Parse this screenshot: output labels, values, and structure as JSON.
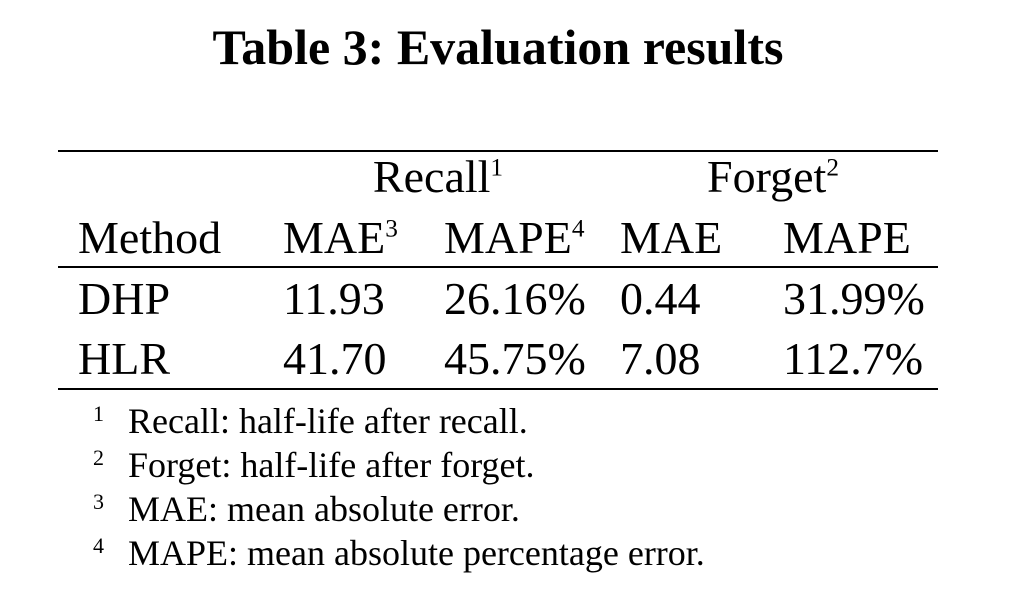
{
  "caption": "Table 3: Evaluation results",
  "table": {
    "groups": [
      {
        "label": "Recall",
        "sup": "1"
      },
      {
        "label": "Forget",
        "sup": "2"
      }
    ],
    "columns": [
      {
        "label": "Method",
        "sup": ""
      },
      {
        "label": "MAE",
        "sup": "3"
      },
      {
        "label": "MAPE",
        "sup": "4"
      },
      {
        "label": "MAE",
        "sup": ""
      },
      {
        "label": "MAPE",
        "sup": ""
      }
    ],
    "rows": [
      {
        "method": "DHP",
        "values": [
          "11.93",
          "26.16%",
          "0.44",
          "31.99%"
        ]
      },
      {
        "method": "HLR",
        "values": [
          "41.70",
          "45.75%",
          "7.08",
          "112.7%"
        ]
      }
    ]
  },
  "footnotes": [
    {
      "marker": "1",
      "text": "Recall: half-life after recall."
    },
    {
      "marker": "2",
      "text": "Forget: half-life after forget."
    },
    {
      "marker": "3",
      "text": "MAE: mean absolute error."
    },
    {
      "marker": "4",
      "text": "MAPE: mean absolute percentage error."
    }
  ],
  "colors": {
    "background": "#ffffff",
    "text": "#000000",
    "rule": "#000000"
  }
}
